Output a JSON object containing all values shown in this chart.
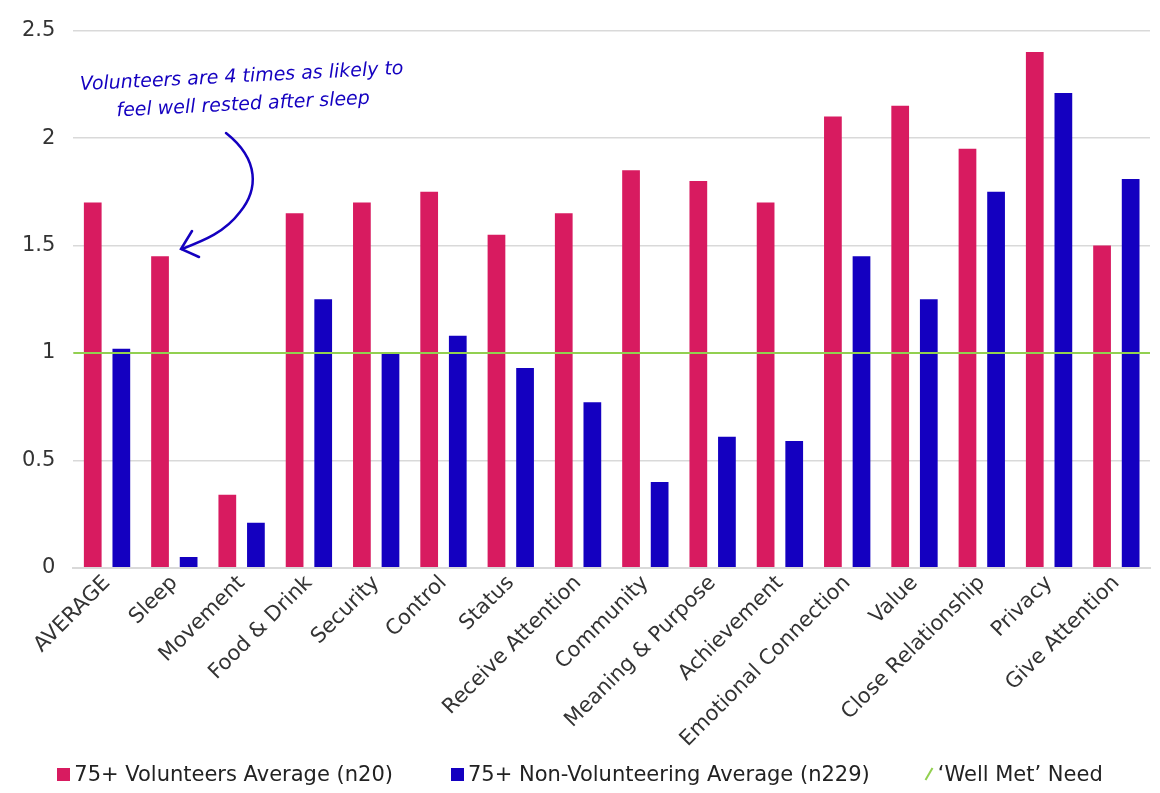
{
  "chart_data": {
    "type": "bar",
    "categories": [
      "AVERAGE",
      "Sleep",
      "Movement",
      "Food & Drink",
      "Security",
      "Control",
      "Status",
      "Receive Attention",
      "Community",
      "Meaning & Purpose",
      "Achievement",
      "Emotional Connection",
      "Value",
      "Close Relationship",
      "Privacy",
      "Give Attention"
    ],
    "series": [
      {
        "name": "75+ Volunteers Average (n20)",
        "color": "#d81b60",
        "values": [
          1.7,
          1.45,
          0.34,
          1.65,
          1.7,
          1.75,
          1.55,
          1.65,
          1.85,
          1.8,
          1.7,
          2.1,
          2.15,
          1.95,
          2.4,
          1.5
        ]
      },
      {
        "name": "75+ Non-Volunteering Average (n229)",
        "color": "#1400c0",
        "values": [
          1.02,
          0.05,
          0.21,
          1.25,
          1.0,
          1.08,
          0.93,
          0.77,
          0.4,
          0.61,
          0.59,
          1.45,
          1.25,
          1.75,
          2.21,
          1.81
        ]
      }
    ],
    "ylim": [
      0,
      2.5
    ],
    "yticks": [
      0,
      0.5,
      1,
      1.5,
      2,
      2.5
    ],
    "grid": "y",
    "legend": "bottom",
    "ref_lines": [
      {
        "axis": "y",
        "value": 1,
        "label": "‘Well Met’ Need",
        "color": "#92d050"
      }
    ],
    "annotations": [
      "Volunteers are 4 times as likely to\nfeel well rested after sleep"
    ]
  }
}
